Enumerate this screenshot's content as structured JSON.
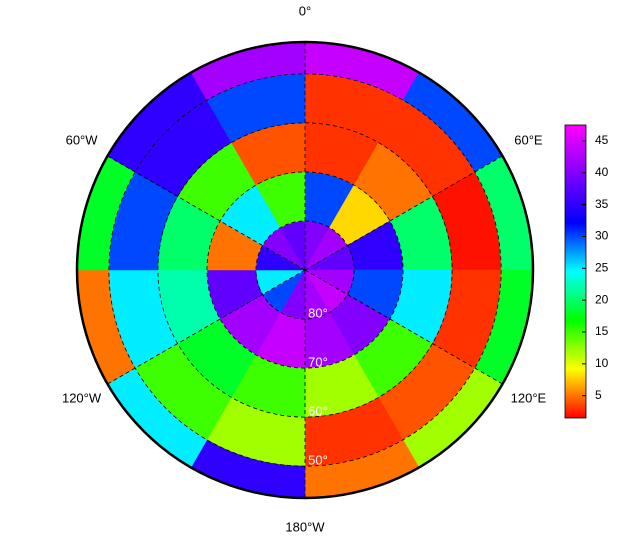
{
  "chart_data": {
    "type": "polar-heatmap",
    "lat_edges": [
      -90,
      -80,
      -70,
      -60,
      -50,
      -43.5
    ],
    "lon_edges": [
      0,
      30,
      60,
      90,
      120,
      150,
      180,
      210,
      240,
      270,
      300,
      330,
      360
    ],
    "values": [
      [
        40,
        42,
        38,
        42,
        44,
        42,
        40,
        30,
        25,
        35,
        40,
        38
      ],
      [
        30,
        8,
        35,
        30,
        40,
        42,
        44,
        42,
        38,
        5,
        25,
        15
      ],
      [
        3,
        5,
        20,
        25,
        15,
        12,
        15,
        18,
        22,
        20,
        15,
        4
      ],
      [
        3,
        3,
        2,
        3,
        4,
        3,
        12,
        15,
        25,
        30,
        35,
        30
      ],
      [
        44,
        30,
        20,
        18,
        12,
        5,
        35,
        25,
        5,
        18,
        35,
        42
      ]
    ],
    "lonticks": [
      {
        "value": 0,
        "label": "0°"
      },
      {
        "value": 60,
        "label": "60°E"
      },
      {
        "value": 120,
        "label": "120°E"
      },
      {
        "value": 180,
        "label": "180°W"
      },
      {
        "value": -120,
        "label": "120°W"
      },
      {
        "value": -60,
        "label": "60°W"
      }
    ],
    "latticks": [
      {
        "value": -80,
        "label": "80°"
      },
      {
        "value": -70,
        "label": "70°"
      },
      {
        "value": -60,
        "label": "60°"
      },
      {
        "value": -50,
        "label": "50°"
      }
    ],
    "colormap": [
      "#ff0000",
      "#ffff00",
      "#00ff00",
      "#00ffff",
      "#0000ff",
      "#8000ff",
      "#ff00ff"
    ],
    "clim": [
      1.5,
      47.5
    ],
    "cticks": [
      5,
      10,
      15,
      20,
      25,
      30,
      35,
      40,
      45
    ]
  }
}
